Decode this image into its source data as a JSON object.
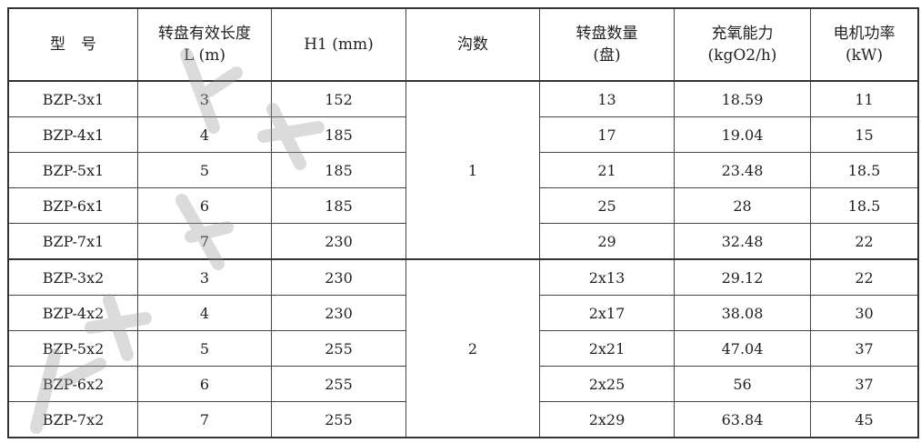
{
  "table": {
    "headers": [
      [
        "型　号"
      ],
      [
        "转盘有效长度",
        "L (m)"
      ],
      [
        "H1 (mm)"
      ],
      [
        "沟数"
      ],
      [
        "转盘数量",
        "(盘)"
      ],
      [
        "充氧能力",
        "(kgO2/h)"
      ],
      [
        "电机功率",
        "(kW)"
      ]
    ],
    "groups": [
      "1",
      "2"
    ],
    "rows": [
      {
        "model": "BZP-3x1",
        "length": "3",
        "h1": "152",
        "disks": "13",
        "oxygen": "18.59",
        "power": "11"
      },
      {
        "model": "BZP-4x1",
        "length": "4",
        "h1": "185",
        "disks": "17",
        "oxygen": "19.04",
        "power": "15"
      },
      {
        "model": "BZP-5x1",
        "length": "5",
        "h1": "185",
        "disks": "21",
        "oxygen": "23.48",
        "power": "18.5"
      },
      {
        "model": "BZP-6x1",
        "length": "6",
        "h1": "185",
        "disks": "25",
        "oxygen": "28",
        "power": "18.5"
      },
      {
        "model": "BZP-7x1",
        "length": "7",
        "h1": "230",
        "disks": "29",
        "oxygen": "32.48",
        "power": "22"
      },
      {
        "model": "BZP-3x2",
        "length": "3",
        "h1": "230",
        "disks": "2x13",
        "oxygen": "29.12",
        "power": "22"
      },
      {
        "model": "BZP-4x2",
        "length": "4",
        "h1": "230",
        "disks": "2x17",
        "oxygen": "38.08",
        "power": "30"
      },
      {
        "model": "BZP-5x2",
        "length": "5",
        "h1": "255",
        "disks": "2x21",
        "oxygen": "47.04",
        "power": "37"
      },
      {
        "model": "BZP-6x2",
        "length": "6",
        "h1": "255",
        "disks": "2x25",
        "oxygen": "56",
        "power": "37"
      },
      {
        "model": "BZP-7x2",
        "length": "7",
        "h1": "255",
        "disks": "2x29",
        "oxygen": "63.84",
        "power": "45"
      }
    ]
  }
}
